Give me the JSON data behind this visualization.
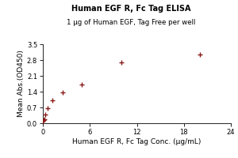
{
  "title": "Human EGF R, Fc Tag ELISA",
  "subtitle": "1 μg of Human EGF, Tag Free per well",
  "xlabel": "Human EGF R, Fc Tag Conc. (μg/mL)",
  "ylabel": "Mean Abs.(OD450)",
  "x_data_plot": [
    0.04,
    0.08,
    0.16,
    0.31,
    0.63,
    1.25,
    2.5,
    5.0,
    10.0,
    20.0
  ],
  "y_data_plot": [
    0.11,
    0.13,
    0.18,
    0.38,
    0.65,
    1.0,
    1.35,
    1.72,
    2.7,
    3.05
  ],
  "xlim": [
    0,
    24
  ],
  "ylim": [
    0,
    3.5
  ],
  "yticks": [
    0.0,
    0.7,
    1.4,
    2.1,
    2.8,
    3.5
  ],
  "xticks": [
    0,
    6,
    12,
    18,
    24
  ],
  "color": "#8B1A1A",
  "title_fontsize": 7.0,
  "subtitle_fontsize": 6.2,
  "label_fontsize": 6.5,
  "tick_fontsize": 6.0
}
